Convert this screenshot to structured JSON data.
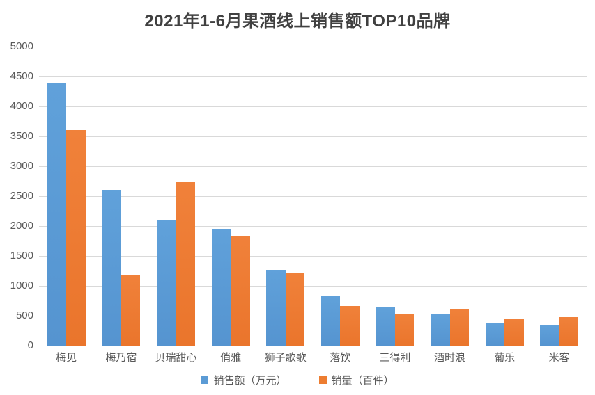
{
  "title": "2021年1-6月果酒线上销售额TOP10品牌",
  "styles": {
    "title_color": "#404040",
    "axis_text_color": "#595959",
    "gridline_color": "#d9d9d9",
    "background": "#ffffff"
  },
  "chart_data": {
    "type": "bar",
    "title": "2021年1-6月果酒线上销售额TOP10品牌",
    "categories": [
      "梅见",
      "梅乃宿",
      "贝瑞甜心",
      "俏雅",
      "狮子歌歌",
      "落饮",
      "三得利",
      "酒时浪",
      "葡乐",
      "米客"
    ],
    "series": [
      {
        "name": "销售额（万元）",
        "color": "#5b9bd5",
        "values": [
          4400,
          2600,
          2090,
          1940,
          1270,
          820,
          640,
          520,
          370,
          350
        ]
      },
      {
        "name": "销量（百件）",
        "color": "#ed7d31",
        "values": [
          3600,
          1170,
          2730,
          1840,
          1220,
          660,
          520,
          620,
          450,
          480
        ]
      }
    ],
    "xlabel": "",
    "ylabel": "",
    "ylim": [
      0,
      5000
    ],
    "yticks": [
      0,
      500,
      1000,
      1500,
      2000,
      2500,
      3000,
      3500,
      4000,
      4500,
      5000
    ],
    "grid": true,
    "legend_position": "bottom"
  }
}
